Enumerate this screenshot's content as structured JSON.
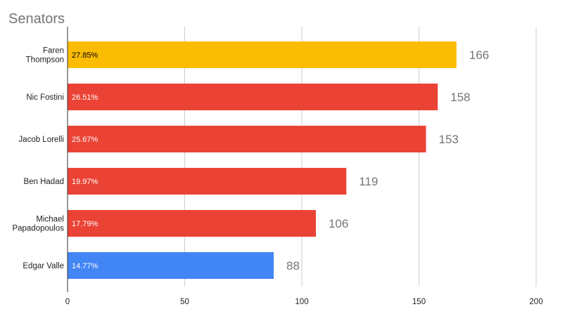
{
  "chart_data": {
    "type": "bar",
    "orientation": "horizontal",
    "title": "Senators",
    "xlabel": "",
    "ylabel": "",
    "xlim": [
      0,
      200
    ],
    "x_ticks": [
      0,
      50,
      100,
      150,
      200
    ],
    "grid": true,
    "legend": "none",
    "categories": [
      "Faren Thompson",
      "Nic Fostini",
      "Jacob Lorelli",
      "Ben Hadad",
      "Michael Papadopoulos",
      "Edgar Valle"
    ],
    "category_label_lines": [
      [
        "Faren",
        "Thompson"
      ],
      [
        "Nic Fostini"
      ],
      [
        "Jacob Lorelli"
      ],
      [
        "Ben Hadad"
      ],
      [
        "Michael",
        "Papadopoulos"
      ],
      [
        "Edgar Valle"
      ]
    ],
    "values": [
      166,
      158,
      153,
      119,
      106,
      88
    ],
    "percent_labels": [
      "27.85%",
      "26.51%",
      "25.67%",
      "19.97%",
      "17.79%",
      "14.77%"
    ],
    "bar_colors": [
      "#fbbc04",
      "#ea4335",
      "#ea4335",
      "#ea4335",
      "#ea4335",
      "#4285f4"
    ],
    "percent_label_colors": [
      "#000000",
      "#ffffff",
      "#ffffff",
      "#ffffff",
      "#ffffff",
      "#ffffff"
    ],
    "value_label_color": "#757575",
    "grid_color": "#cccccc",
    "axis_color": "#333333"
  }
}
